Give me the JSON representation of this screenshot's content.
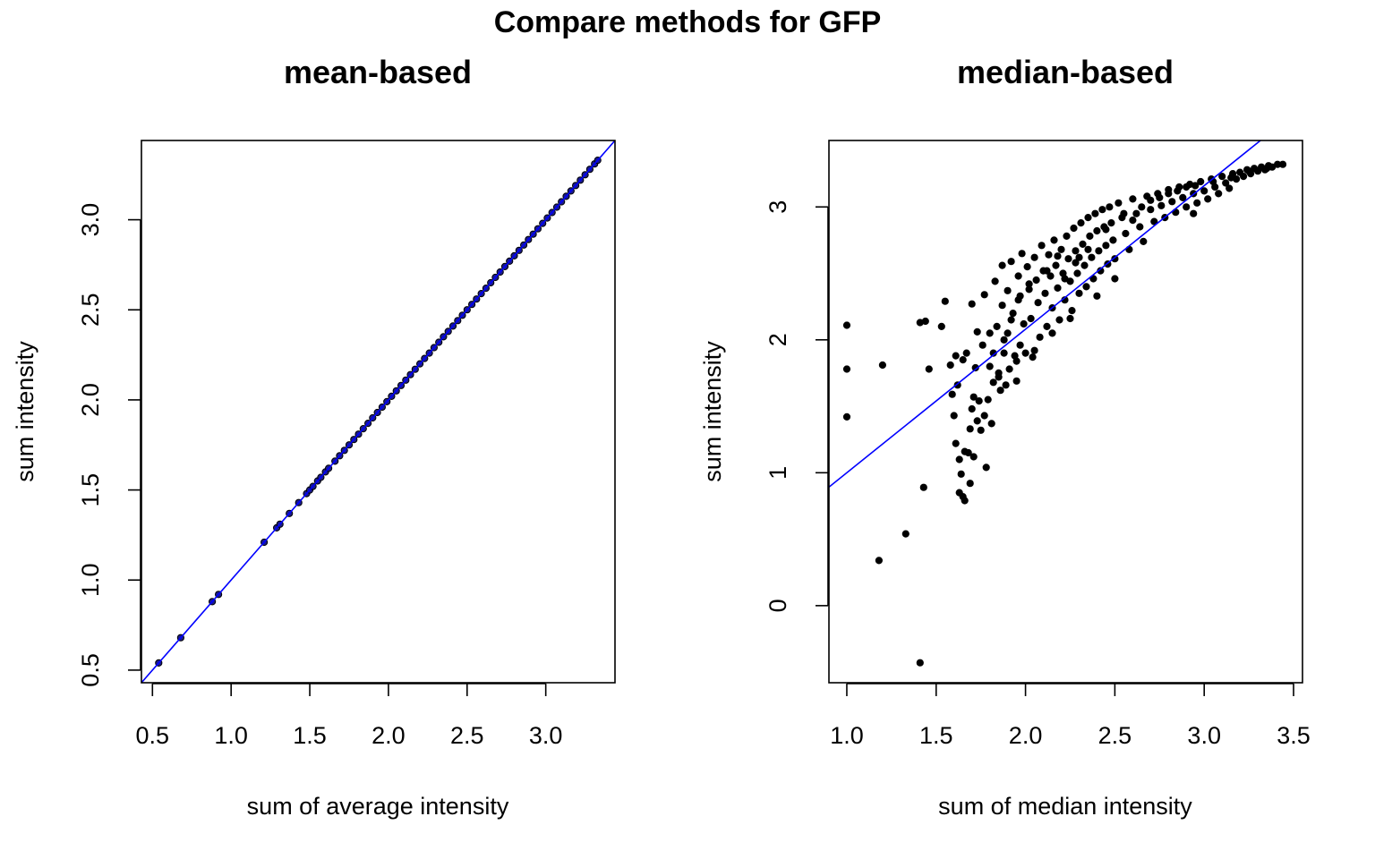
{
  "figure": {
    "title": "Compare methods for GFP"
  },
  "chart_data": [
    {
      "type": "scatter",
      "title": "mean-based",
      "xlabel": "sum of average intensity",
      "ylabel": "sum intensity",
      "xlim": [
        0.43,
        3.44
      ],
      "ylim": [
        0.43,
        3.44
      ],
      "xticks": [
        "0.5",
        "1.0",
        "1.5",
        "2.0",
        "2.5",
        "3.0"
      ],
      "yticks": [
        "0.5",
        "1.0",
        "1.5",
        "2.0",
        "2.5",
        "3.0"
      ],
      "reference_line": {
        "intercept": 0,
        "slope": 1,
        "color": "#0000ff"
      },
      "point_color": "#000000",
      "point_fill": "#1a1a8c",
      "series": [
        {
          "points": [
            [
              0.54,
              0.54
            ],
            [
              0.68,
              0.68
            ],
            [
              0.88,
              0.88
            ],
            [
              0.92,
              0.92
            ],
            [
              1.21,
              1.21
            ],
            [
              1.29,
              1.29
            ],
            [
              1.31,
              1.31
            ],
            [
              1.37,
              1.37
            ],
            [
              1.43,
              1.43
            ],
            [
              1.48,
              1.48
            ],
            [
              1.5,
              1.5
            ],
            [
              1.52,
              1.52
            ],
            [
              1.55,
              1.55
            ],
            [
              1.57,
              1.57
            ],
            [
              1.6,
              1.6
            ],
            [
              1.62,
              1.62
            ],
            [
              1.66,
              1.66
            ],
            [
              1.69,
              1.69
            ],
            [
              1.72,
              1.72
            ],
            [
              1.75,
              1.75
            ],
            [
              1.78,
              1.78
            ],
            [
              1.81,
              1.81
            ],
            [
              1.84,
              1.84
            ],
            [
              1.87,
              1.87
            ],
            [
              1.9,
              1.9
            ],
            [
              1.93,
              1.93
            ],
            [
              1.96,
              1.96
            ],
            [
              1.99,
              1.99
            ],
            [
              2.02,
              2.02
            ],
            [
              2.05,
              2.05
            ],
            [
              2.08,
              2.08
            ],
            [
              2.11,
              2.11
            ],
            [
              2.14,
              2.14
            ],
            [
              2.17,
              2.17
            ],
            [
              2.2,
              2.2
            ],
            [
              2.23,
              2.23
            ],
            [
              2.26,
              2.26
            ],
            [
              2.29,
              2.29
            ],
            [
              2.32,
              2.32
            ],
            [
              2.35,
              2.35
            ],
            [
              2.38,
              2.38
            ],
            [
              2.41,
              2.41
            ],
            [
              2.44,
              2.44
            ],
            [
              2.47,
              2.47
            ],
            [
              2.5,
              2.5
            ],
            [
              2.53,
              2.53
            ],
            [
              2.56,
              2.56
            ],
            [
              2.59,
              2.59
            ],
            [
              2.62,
              2.62
            ],
            [
              2.65,
              2.65
            ],
            [
              2.68,
              2.68
            ],
            [
              2.71,
              2.71
            ],
            [
              2.74,
              2.74
            ],
            [
              2.77,
              2.77
            ],
            [
              2.8,
              2.8
            ],
            [
              2.83,
              2.83
            ],
            [
              2.86,
              2.86
            ],
            [
              2.89,
              2.89
            ],
            [
              2.92,
              2.92
            ],
            [
              2.95,
              2.95
            ],
            [
              2.98,
              2.98
            ],
            [
              3.01,
              3.01
            ],
            [
              3.04,
              3.04
            ],
            [
              3.07,
              3.07
            ],
            [
              3.1,
              3.1
            ],
            [
              3.13,
              3.13
            ],
            [
              3.16,
              3.16
            ],
            [
              3.19,
              3.19
            ],
            [
              3.22,
              3.22
            ],
            [
              3.25,
              3.25
            ],
            [
              3.28,
              3.28
            ],
            [
              3.31,
              3.31
            ],
            [
              3.33,
              3.33
            ]
          ]
        }
      ]
    },
    {
      "type": "scatter",
      "title": "median-based",
      "xlabel": "sum of median intensity",
      "ylabel": "sum intensity",
      "xlim": [
        0.9,
        3.55
      ],
      "ylim": [
        -0.58,
        3.5
      ],
      "xticks": [
        "1.0",
        "1.5",
        "2.0",
        "2.5",
        "3.0",
        "3.5"
      ],
      "yticks": [
        "0",
        "1",
        "2",
        "3"
      ],
      "reference_line": {
        "intercept": -0.08,
        "slope": 1.08,
        "color": "#0000ff"
      },
      "point_color": "#000000",
      "point_fill": "#000000",
      "series": [
        {
          "points": [
            [
              1.0,
              2.11
            ],
            [
              1.0,
              1.78
            ],
            [
              1.0,
              1.42
            ],
            [
              1.2,
              1.81
            ],
            [
              1.18,
              0.34
            ],
            [
              1.33,
              0.54
            ],
            [
              1.41,
              -0.43
            ],
            [
              1.43,
              0.89
            ],
            [
              1.41,
              2.13
            ],
            [
              1.44,
              2.14
            ],
            [
              1.46,
              1.78
            ],
            [
              1.53,
              2.1
            ],
            [
              1.55,
              2.29
            ],
            [
              1.58,
              1.81
            ],
            [
              1.59,
              1.59
            ],
            [
              1.6,
              1.43
            ],
            [
              1.61,
              1.88
            ],
            [
              1.61,
              1.22
            ],
            [
              1.62,
              1.66
            ],
            [
              1.63,
              1.1
            ],
            [
              1.63,
              0.85
            ],
            [
              1.64,
              0.99
            ],
            [
              1.65,
              1.85
            ],
            [
              1.65,
              0.82
            ],
            [
              1.66,
              1.16
            ],
            [
              1.66,
              0.79
            ],
            [
              1.67,
              1.9
            ],
            [
              1.68,
              1.15
            ],
            [
              1.69,
              0.92
            ],
            [
              1.69,
              1.33
            ],
            [
              1.7,
              1.48
            ],
            [
              1.7,
              2.27
            ],
            [
              1.71,
              1.12
            ],
            [
              1.71,
              1.57
            ],
            [
              1.72,
              1.79
            ],
            [
              1.73,
              1.39
            ],
            [
              1.73,
              2.06
            ],
            [
              1.74,
              1.54
            ],
            [
              1.75,
              1.32
            ],
            [
              1.76,
              1.96
            ],
            [
              1.77,
              1.43
            ],
            [
              1.77,
              2.34
            ],
            [
              1.78,
              1.04
            ],
            [
              1.79,
              1.55
            ],
            [
              1.8,
              1.8
            ],
            [
              1.8,
              2.05
            ],
            [
              1.81,
              1.37
            ],
            [
              1.82,
              1.68
            ],
            [
              1.83,
              2.44
            ],
            [
              1.84,
              2.1
            ],
            [
              1.85,
              1.75
            ],
            [
              1.86,
              1.62
            ],
            [
              1.87,
              2.56
            ],
            [
              1.87,
              2.26
            ],
            [
              1.88,
              1.9
            ],
            [
              1.89,
              1.66
            ],
            [
              1.9,
              2.37
            ],
            [
              1.9,
              2.05
            ],
            [
              1.91,
              1.78
            ],
            [
              1.92,
              2.59
            ],
            [
              1.93,
              2.2
            ],
            [
              1.94,
              1.88
            ],
            [
              1.95,
              1.69
            ],
            [
              1.96,
              2.48
            ],
            [
              1.97,
              2.33
            ],
            [
              1.97,
              1.96
            ],
            [
              1.98,
              2.65
            ],
            [
              1.99,
              2.12
            ],
            [
              2.0,
              1.9
            ],
            [
              2.01,
              2.55
            ],
            [
              2.02,
              2.38
            ],
            [
              2.03,
              2.16
            ],
            [
              2.04,
              1.87
            ],
            [
              2.05,
              2.62
            ],
            [
              2.06,
              2.45
            ],
            [
              2.07,
              2.28
            ],
            [
              2.08,
              2.02
            ],
            [
              2.09,
              2.71
            ],
            [
              2.1,
              2.52
            ],
            [
              2.11,
              2.35
            ],
            [
              2.12,
              2.1
            ],
            [
              2.13,
              2.64
            ],
            [
              2.14,
              2.48
            ],
            [
              2.15,
              2.24
            ],
            [
              2.16,
              2.75
            ],
            [
              2.17,
              2.56
            ],
            [
              2.18,
              2.39
            ],
            [
              2.19,
              2.15
            ],
            [
              2.2,
              2.68
            ],
            [
              2.21,
              2.5
            ],
            [
              2.22,
              2.3
            ],
            [
              2.23,
              2.78
            ],
            [
              2.24,
              2.61
            ],
            [
              2.25,
              2.44
            ],
            [
              2.26,
              2.22
            ],
            [
              2.27,
              2.84
            ],
            [
              2.28,
              2.67
            ],
            [
              2.29,
              2.5
            ],
            [
              2.3,
              2.35
            ],
            [
              2.31,
              2.88
            ],
            [
              2.32,
              2.72
            ],
            [
              2.33,
              2.56
            ],
            [
              2.34,
              2.4
            ],
            [
              2.35,
              2.92
            ],
            [
              2.36,
              2.78
            ],
            [
              2.37,
              2.62
            ],
            [
              2.38,
              2.46
            ],
            [
              2.39,
              2.95
            ],
            [
              2.4,
              2.82
            ],
            [
              2.41,
              2.67
            ],
            [
              2.42,
              2.52
            ],
            [
              2.43,
              2.98
            ],
            [
              2.44,
              2.85
            ],
            [
              2.45,
              2.71
            ],
            [
              2.46,
              2.57
            ],
            [
              2.47,
              3.0
            ],
            [
              2.48,
              2.88
            ],
            [
              2.49,
              2.75
            ],
            [
              2.5,
              2.61
            ],
            [
              2.52,
              3.03
            ],
            [
              2.54,
              2.92
            ],
            [
              2.56,
              2.8
            ],
            [
              2.58,
              2.68
            ],
            [
              2.6,
              3.06
            ],
            [
              2.62,
              2.95
            ],
            [
              2.64,
              2.85
            ],
            [
              2.66,
              2.74
            ],
            [
              2.68,
              3.08
            ],
            [
              2.7,
              2.98
            ],
            [
              2.72,
              2.89
            ],
            [
              2.74,
              3.1
            ],
            [
              2.76,
              3.01
            ],
            [
              2.78,
              2.92
            ],
            [
              2.8,
              3.13
            ],
            [
              2.82,
              3.04
            ],
            [
              2.84,
              2.96
            ],
            [
              2.86,
              3.15
            ],
            [
              2.88,
              3.07
            ],
            [
              2.9,
              3.0
            ],
            [
              2.92,
              3.17
            ],
            [
              2.94,
              3.1
            ],
            [
              2.96,
              3.03
            ],
            [
              2.98,
              3.19
            ],
            [
              3.0,
              3.12
            ],
            [
              3.02,
              3.06
            ],
            [
              3.04,
              3.21
            ],
            [
              3.06,
              3.15
            ],
            [
              3.08,
              3.1
            ],
            [
              3.1,
              3.23
            ],
            [
              3.12,
              3.18
            ],
            [
              3.14,
              3.14
            ],
            [
              3.16,
              3.25
            ],
            [
              3.18,
              3.21
            ],
            [
              3.2,
              3.26
            ],
            [
              3.22,
              3.23
            ],
            [
              3.24,
              3.28
            ],
            [
              3.26,
              3.25
            ],
            [
              3.28,
              3.29
            ],
            [
              3.3,
              3.27
            ],
            [
              3.32,
              3.3
            ],
            [
              3.34,
              3.28
            ],
            [
              3.36,
              3.31
            ],
            [
              3.38,
              3.3
            ],
            [
              3.41,
              3.32
            ],
            [
              3.44,
              3.32
            ],
            [
              2.94,
              2.95
            ],
            [
              2.5,
              2.46
            ],
            [
              2.4,
              2.33
            ],
            [
              2.25,
              2.16
            ],
            [
              2.15,
              2.05
            ],
            [
              2.05,
              1.92
            ],
            [
              1.95,
              1.84
            ],
            [
              1.85,
              1.72
            ],
            [
              2.3,
              2.62
            ],
            [
              2.45,
              2.83
            ],
            [
              2.55,
              2.95
            ],
            [
              2.35,
              2.68
            ],
            [
              2.28,
              2.58
            ],
            [
              2.22,
              2.46
            ],
            [
              2.18,
              2.63
            ],
            [
              2.12,
              2.52
            ],
            [
              2.02,
              2.42
            ],
            [
              1.96,
              2.3
            ],
            [
              1.92,
              2.15
            ],
            [
              1.88,
              2.0
            ],
            [
              1.82,
              1.9
            ],
            [
              2.6,
              2.9
            ],
            [
              2.65,
              3.0
            ],
            [
              2.7,
              3.05
            ],
            [
              2.75,
              3.07
            ],
            [
              2.8,
              3.1
            ],
            [
              2.85,
              3.12
            ],
            [
              2.9,
              3.15
            ],
            [
              2.95,
              3.16
            ],
            [
              3.05,
              3.19
            ],
            [
              3.15,
              3.22
            ],
            [
              3.25,
              3.27
            ],
            [
              3.35,
              3.29
            ]
          ]
        }
      ]
    }
  ]
}
